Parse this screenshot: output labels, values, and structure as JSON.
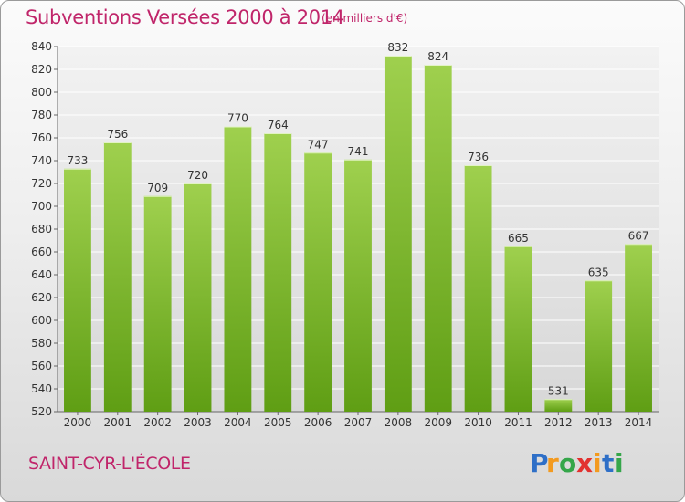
{
  "header": {
    "title": "Subventions Versées 2000 à 2014",
    "unit": "(en milliers d'€)"
  },
  "footer": {
    "commune": "SAINT-CYR-L'ÉCOLE",
    "logo_text": "Proxiti"
  },
  "colors": {
    "accent": "#c0256a",
    "bar_light": "#9fd04e",
    "bar_dark": "#5f9e14"
  },
  "chart_data": {
    "type": "bar",
    "title": "Subventions Versées 2000 à 2014",
    "subtitle": "(en milliers d'€)",
    "xlabel": "",
    "ylabel": "",
    "categories": [
      "2000",
      "2001",
      "2002",
      "2003",
      "2004",
      "2005",
      "2006",
      "2007",
      "2008",
      "2009",
      "2010",
      "2011",
      "2012",
      "2013",
      "2014"
    ],
    "values": [
      733,
      756,
      709,
      720,
      770,
      764,
      747,
      741,
      832,
      824,
      736,
      665,
      531,
      635,
      667
    ],
    "ylim": [
      520,
      840
    ],
    "yticks": [
      520,
      540,
      560,
      580,
      600,
      620,
      640,
      660,
      680,
      700,
      720,
      740,
      760,
      780,
      800,
      820,
      840
    ],
    "grid": true,
    "legend": "none"
  }
}
